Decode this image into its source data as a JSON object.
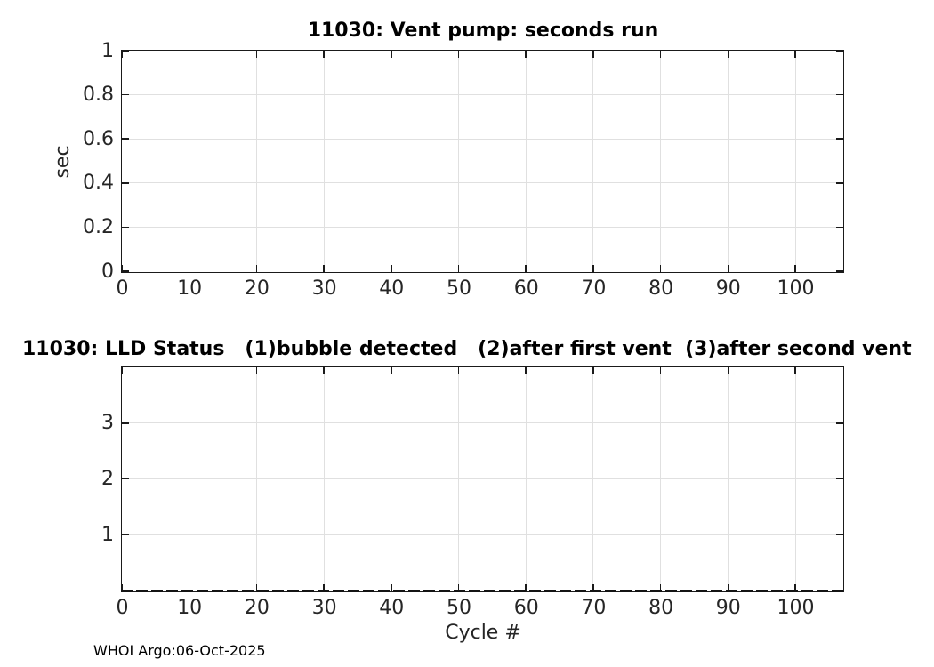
{
  "colors": {
    "background": "#ffffff",
    "axis": "#1a1a1a",
    "grid": "#e0e0e0",
    "tick_label": "#262626",
    "title": "#000000",
    "dashed_line": "#141414"
  },
  "footer": {
    "credit": "WHOI Argo:06-Oct-2025"
  },
  "chart_data": [
    {
      "type": "line",
      "title": "11030: Vent pump: seconds run",
      "xlabel": "",
      "ylabel": "sec",
      "xlim": [
        0,
        107
      ],
      "ylim": [
        0,
        1
      ],
      "xticks": [
        0,
        10,
        20,
        30,
        40,
        50,
        60,
        70,
        80,
        90,
        100
      ],
      "xtick_labels": [
        "0",
        "10",
        "20",
        "30",
        "40",
        "50",
        "60",
        "70",
        "80",
        "90",
        "100"
      ],
      "yticks": [
        0,
        0.2,
        0.4,
        0.6,
        0.8,
        1
      ],
      "ytick_labels": [
        "0",
        "0.2",
        "0.4",
        "0.6",
        "0.8",
        "1"
      ],
      "grid": true,
      "legend": null,
      "series": []
    },
    {
      "type": "line",
      "title": "11030: LLD Status   (1)bubble detected   (2)after first vent  (3)after second vent",
      "xlabel": "Cycle #",
      "ylabel": "",
      "xlim": [
        0,
        107
      ],
      "ylim": [
        0,
        4
      ],
      "xticks": [
        0,
        10,
        20,
        30,
        40,
        50,
        60,
        70,
        80,
        90,
        100
      ],
      "xtick_labels": [
        "0",
        "10",
        "20",
        "30",
        "40",
        "50",
        "60",
        "70",
        "80",
        "90",
        "100"
      ],
      "yticks": [
        1,
        2,
        3
      ],
      "ytick_labels": [
        "1",
        "2",
        "3"
      ],
      "grid": true,
      "legend": null,
      "series": [
        {
          "name": "lld-status-zero-baseline",
          "style": "dashed",
          "color": "#141414",
          "y_constant": 0,
          "x_range": [
            0,
            107
          ]
        }
      ]
    }
  ]
}
